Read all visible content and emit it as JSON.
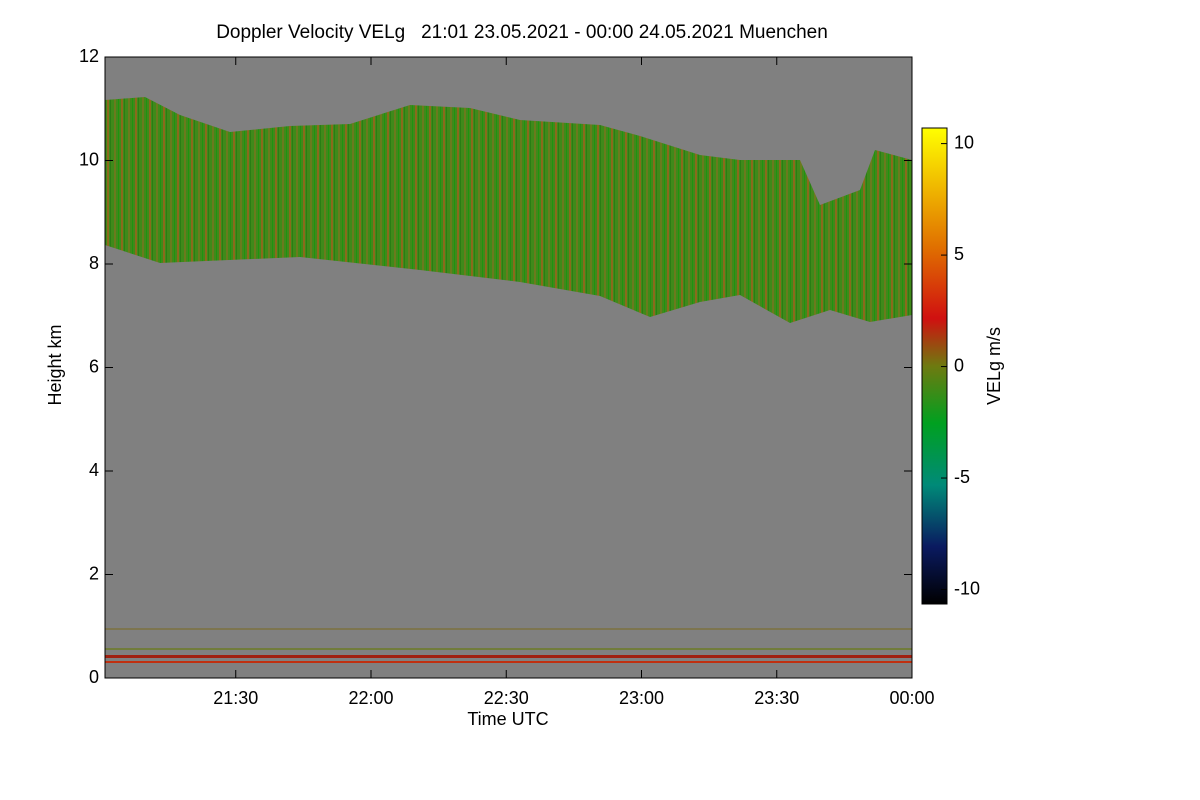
{
  "chart_data": {
    "type": "heatmap",
    "title": "Doppler Velocity VELg   21:01 23.05.2021 - 00:00 24.05.2021 Muenchen",
    "x_label": "Time UTC",
    "y_label": "Height km",
    "colorbar_label": "VELg m/s",
    "xlim": [
      1261,
      1440
    ],
    "xticks": [
      {
        "value": 1290,
        "label": "21:30"
      },
      {
        "value": 1320,
        "label": "22:00"
      },
      {
        "value": 1350,
        "label": "22:30"
      },
      {
        "value": 1380,
        "label": "23:00"
      },
      {
        "value": 1410,
        "label": "23:30"
      },
      {
        "value": 1440,
        "label": "00:00"
      }
    ],
    "ylim": [
      0,
      12
    ],
    "yticks": [
      0,
      2,
      4,
      6,
      8,
      10,
      12
    ],
    "clim": [
      -10.65,
      10.7
    ],
    "cticks": [
      -10,
      -5,
      0,
      5,
      10
    ]
  }
}
